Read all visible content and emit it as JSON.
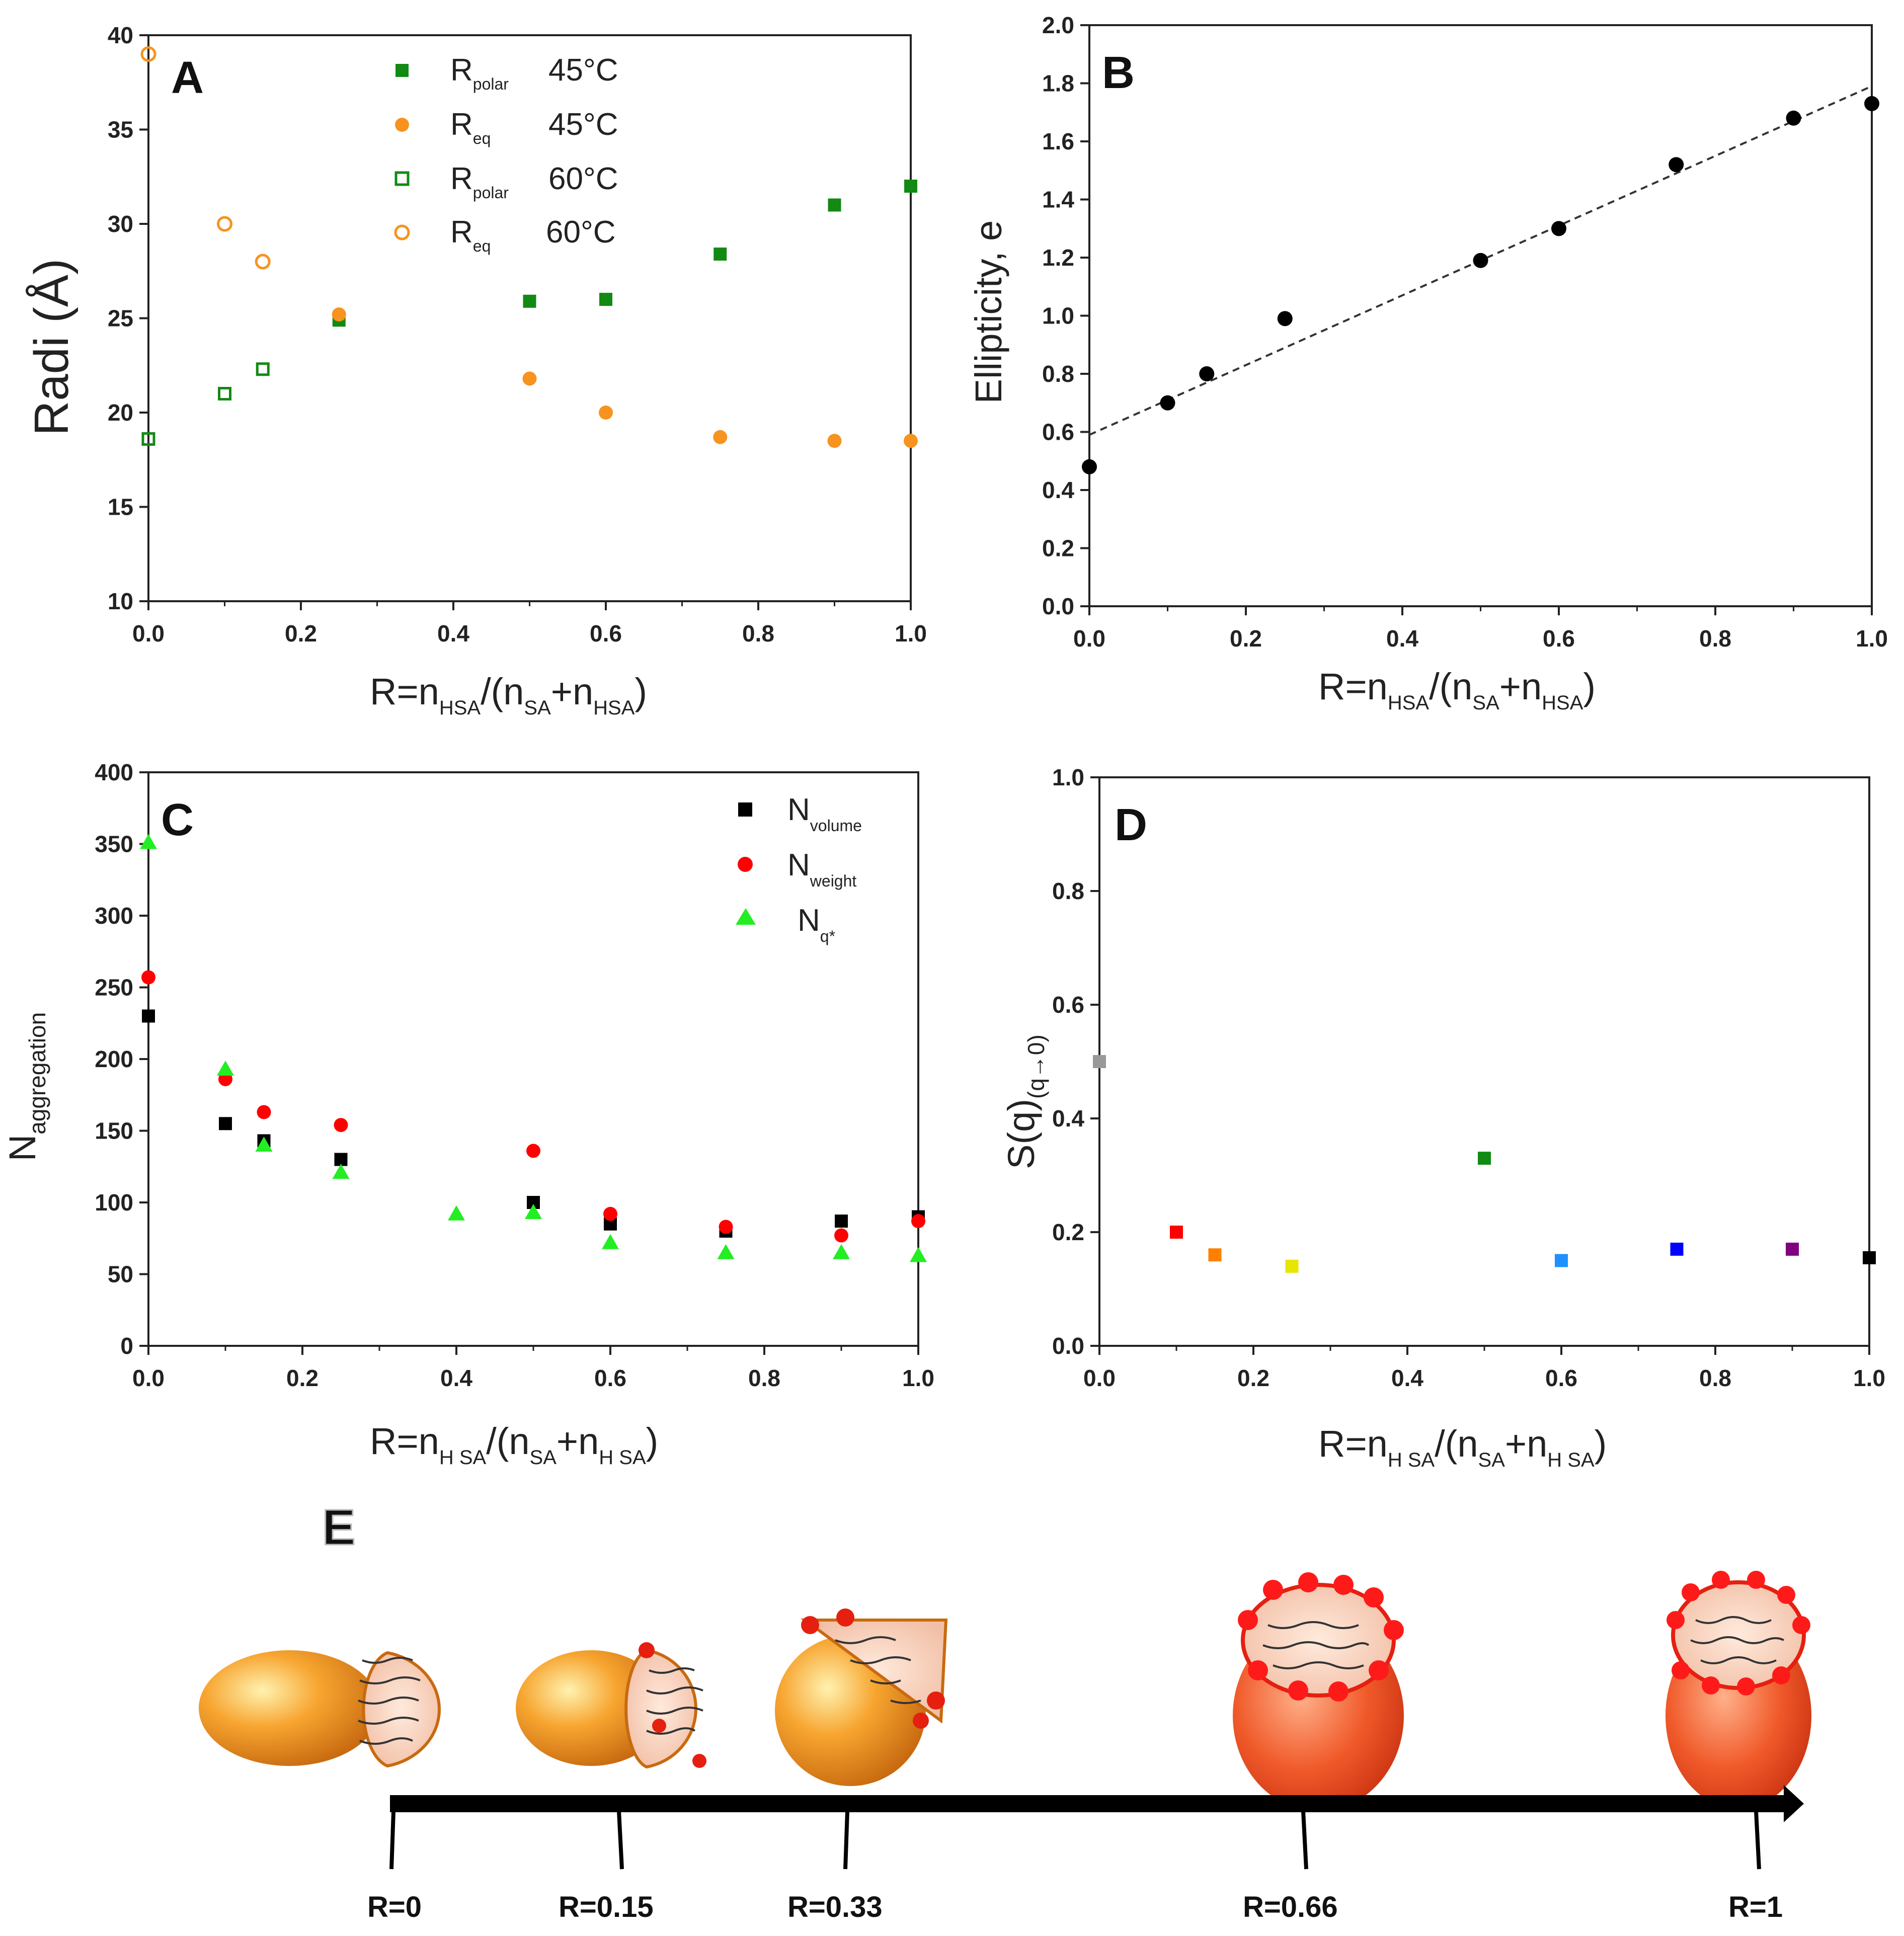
{
  "colors": {
    "dark_green": "#138a13",
    "orange": "#f7931e",
    "black": "#000000",
    "red": "#ff0000",
    "light_green": "#22ee22",
    "axis": "#222222"
  },
  "chart_data": [
    {
      "id": "A",
      "type": "scatter",
      "panel_letter": "A",
      "xlabel": "R=n",
      "xlabel_sub1": "HSA",
      "xlabel_mid": "/(n",
      "xlabel_sub2": "SA",
      "xlabel_plus": "+n",
      "xlabel_sub3": "HSA",
      "xlabel_end": ")",
      "ylabel": "Radi (Å)",
      "xlim": [
        0,
        1.0
      ],
      "ylim": [
        10,
        40
      ],
      "xticks": [
        "0.0",
        "0.2",
        "0.4",
        "0.6",
        "0.8",
        "1.0"
      ],
      "yticks": [
        "10",
        "15",
        "20",
        "25",
        "30",
        "35",
        "40"
      ],
      "legend_position": "top-center",
      "series": [
        {
          "name": "R",
          "name_sub": "polar",
          "temp": "45°C",
          "marker": "square",
          "filled": true,
          "color": "#138a13",
          "x": [
            0.25,
            0.5,
            0.6,
            0.75,
            0.9,
            1.0
          ],
          "y": [
            24.9,
            25.9,
            26.0,
            28.4,
            31.0,
            32.0
          ]
        },
        {
          "name": "R",
          "name_sub": "eq",
          "temp": "45°C",
          "marker": "circle",
          "filled": true,
          "color": "#f7931e",
          "x": [
            0.25,
            0.5,
            0.6,
            0.75,
            0.9,
            1.0
          ],
          "y": [
            25.2,
            21.8,
            20.0,
            18.7,
            18.5,
            18.5
          ]
        },
        {
          "name": "R",
          "name_sub": "polar",
          "temp": "60°C",
          "marker": "square",
          "filled": false,
          "color": "#138a13",
          "x": [
            0.0,
            0.1,
            0.15
          ],
          "y": [
            18.6,
            21.0,
            22.3
          ]
        },
        {
          "name": "R",
          "name_sub": "eq",
          "temp": "60°C",
          "marker": "circle",
          "filled": false,
          "color": "#f7931e",
          "x": [
            0.0,
            0.1,
            0.15
          ],
          "y": [
            39.0,
            30.0,
            28.0
          ]
        }
      ]
    },
    {
      "id": "B",
      "type": "scatter",
      "panel_letter": "B",
      "xlabel": "R=n",
      "xlabel_sub1": "HSA",
      "xlabel_mid": "/(n",
      "xlabel_sub2": "SA",
      "xlabel_plus": "+n",
      "xlabel_sub3": "HSA",
      "xlabel_end": ")",
      "ylabel": "Ellipticity,  e",
      "xlim": [
        0,
        1.0
      ],
      "ylim": [
        0,
        2.0
      ],
      "xticks": [
        "0.0",
        "0.2",
        "0.4",
        "0.6",
        "0.8",
        "1.0"
      ],
      "yticks": [
        "0.0",
        "0.2",
        "0.4",
        "0.6",
        "0.8",
        "1.0",
        "1.2",
        "1.4",
        "1.6",
        "1.8",
        "2.0"
      ],
      "series": [
        {
          "marker": "circle",
          "filled": true,
          "color": "#000000",
          "x": [
            0.0,
            0.1,
            0.15,
            0.25,
            0.5,
            0.6,
            0.75,
            0.9,
            1.0
          ],
          "y": [
            0.48,
            0.7,
            0.8,
            0.99,
            1.19,
            1.3,
            1.52,
            1.68,
            1.73
          ]
        }
      ],
      "fit_line": {
        "style": "dashed",
        "x": [
          0.0,
          1.0
        ],
        "y": [
          0.59,
          1.79
        ]
      }
    },
    {
      "id": "C",
      "type": "scatter",
      "panel_letter": "C",
      "xlabel": "R=n",
      "xlabel_sub1": "H SA",
      "xlabel_mid": "/(n",
      "xlabel_sub2": "SA",
      "xlabel_plus": "+n",
      "xlabel_sub3": "H SA",
      "xlabel_end": ")",
      "ylabel": "N",
      "ylabel_sub": "aggregation",
      "xlim": [
        0,
        1.0
      ],
      "ylim": [
        0,
        400
      ],
      "xticks": [
        "0.0",
        "0.2",
        "0.4",
        "0.6",
        "0.8",
        "1.0"
      ],
      "yticks": [
        "0",
        "50",
        "100",
        "150",
        "200",
        "250",
        "300",
        "350",
        "400"
      ],
      "legend_position": "top-right",
      "series": [
        {
          "name": "N",
          "name_sub": "volume",
          "marker": "square",
          "color": "#000000",
          "x": [
            0.0,
            0.1,
            0.15,
            0.25,
            0.5,
            0.6,
            0.75,
            0.9,
            1.0
          ],
          "y": [
            230,
            155,
            143,
            130,
            100,
            85,
            80,
            87,
            90
          ]
        },
        {
          "name": "N",
          "name_sub": "weight",
          "marker": "circle",
          "color": "#ff0000",
          "x": [
            0.0,
            0.1,
            0.15,
            0.25,
            0.5,
            0.6,
            0.75,
            0.9,
            1.0
          ],
          "y": [
            257,
            186,
            163,
            154,
            136,
            92,
            83,
            77,
            87
          ]
        },
        {
          "name": "N",
          "name_sub": "q*",
          "marker": "triangle",
          "color": "#22ee22",
          "x": [
            0.0,
            0.1,
            0.15,
            0.25,
            0.4,
            0.5,
            0.6,
            0.75,
            0.9,
            1.0
          ],
          "y": [
            351,
            193,
            140,
            121,
            92,
            93,
            72,
            65,
            65,
            63
          ]
        }
      ]
    },
    {
      "id": "D",
      "type": "scatter",
      "panel_letter": "D",
      "xlabel": "R=n",
      "xlabel_sub1": "H SA",
      "xlabel_mid": "/(n",
      "xlabel_sub2": "SA",
      "xlabel_plus": "+n",
      "xlabel_sub3": "H SA",
      "xlabel_end": ")",
      "ylabel": "S(q)",
      "ylabel_sub": "(q→0)",
      "xlim": [
        0,
        1.0
      ],
      "ylim": [
        0,
        1.0
      ],
      "xticks": [
        "0.0",
        "0.2",
        "0.4",
        "0.6",
        "0.8",
        "1.0"
      ],
      "yticks": [
        "0.0",
        "0.2",
        "0.4",
        "0.6",
        "0.8",
        "1.0"
      ],
      "points": [
        {
          "x": 0.0,
          "y": 0.5,
          "color": "#999999"
        },
        {
          "x": 0.1,
          "y": 0.2,
          "color": "#ff0000"
        },
        {
          "x": 0.15,
          "y": 0.16,
          "color": "#ff8000"
        },
        {
          "x": 0.25,
          "y": 0.14,
          "color": "#e6e600"
        },
        {
          "x": 0.5,
          "y": 0.33,
          "color": "#138a13"
        },
        {
          "x": 0.6,
          "y": 0.15,
          "color": "#1e90ff"
        },
        {
          "x": 0.75,
          "y": 0.17,
          "color": "#0000ff"
        },
        {
          "x": 0.9,
          "y": 0.17,
          "color": "#800080"
        },
        {
          "x": 1.0,
          "y": 0.155,
          "color": "#000000"
        }
      ]
    }
  ],
  "schematic": {
    "panel_letter": "E",
    "labels": [
      "R=0",
      "R=0.15",
      "R=0.33",
      "R=0.66",
      "R=1"
    ]
  }
}
